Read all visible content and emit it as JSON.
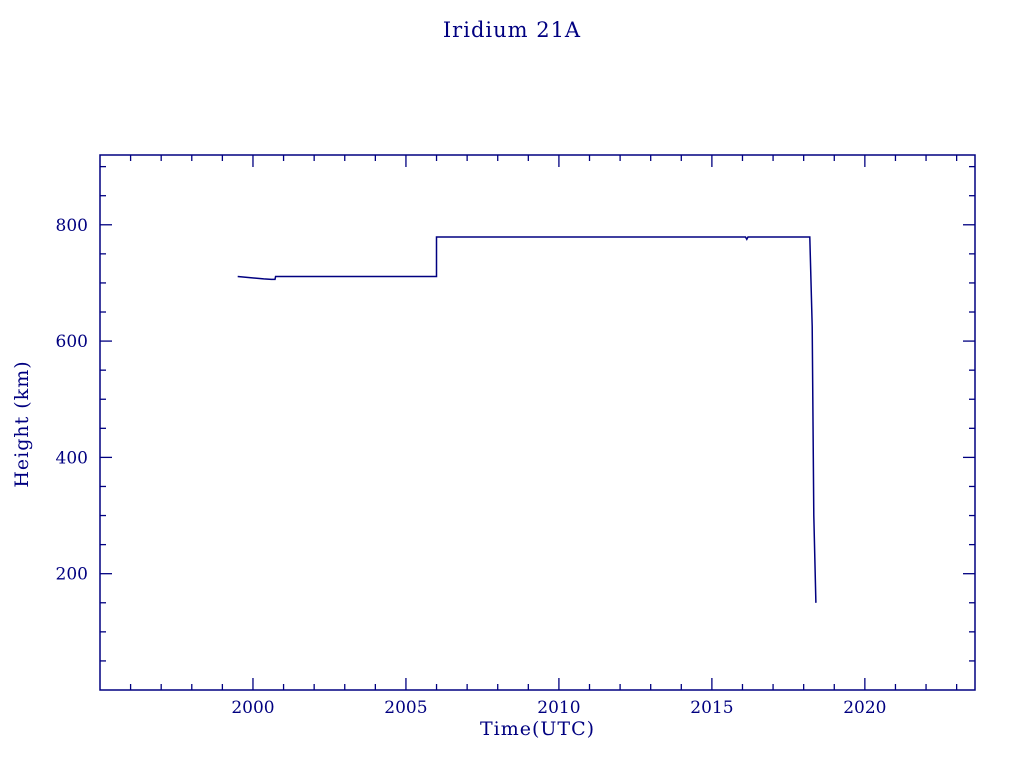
{
  "page": {
    "background": "#ffffff",
    "accent_color": "#000080"
  },
  "chart_data": {
    "type": "line",
    "title": "Iridium 21A",
    "xlabel": "Time(UTC)",
    "ylabel": "Height (km)",
    "xlim": [
      1995,
      2023.6
    ],
    "ylim": [
      0,
      920
    ],
    "x_major_ticks": [
      2000,
      2005,
      2010,
      2015,
      2020
    ],
    "x_minor_step": 1,
    "y_major_ticks": [
      200,
      400,
      600,
      800
    ],
    "y_minor_step": 50,
    "grid": false,
    "legend": false,
    "line_color": "#000080",
    "series": [
      {
        "name": "height",
        "x": [
          1999.5,
          2000.35,
          2000.6,
          2000.72,
          2000.74,
          2006.0,
          2006.0,
          2016.1,
          2016.14,
          2016.18,
          2018.2,
          2018.28,
          2018.33,
          2018.4
        ],
        "y": [
          711,
          707,
          706,
          706,
          711,
          711,
          779,
          779,
          775,
          779,
          779,
          625,
          300,
          150
        ]
      }
    ]
  }
}
